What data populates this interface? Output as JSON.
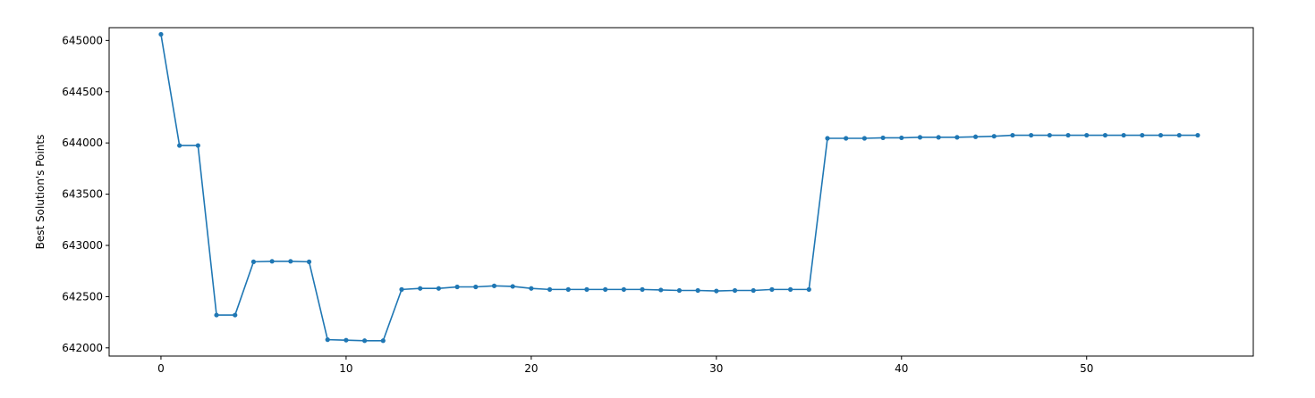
{
  "chart_data": {
    "type": "line",
    "title": "",
    "xlabel": "",
    "ylabel": "Best Solution's Points",
    "xlim": [
      -2.8,
      59
    ],
    "ylim": [
      641920,
      645125
    ],
    "x_ticks": [
      0,
      10,
      20,
      30,
      40,
      50
    ],
    "y_ticks": [
      642000,
      642500,
      643000,
      643500,
      644000,
      644500,
      645000
    ],
    "grid": false,
    "legend": "none",
    "series": [
      {
        "color": "#1f77b4",
        "marker": "circle",
        "x": [
          0,
          1,
          2,
          3,
          4,
          5,
          6,
          7,
          8,
          9,
          10,
          11,
          12,
          13,
          14,
          15,
          16,
          17,
          18,
          19,
          20,
          21,
          22,
          23,
          24,
          25,
          26,
          27,
          28,
          29,
          30,
          31,
          32,
          33,
          34,
          35,
          36,
          37,
          38,
          39,
          40,
          41,
          42,
          43,
          44,
          45,
          46,
          47,
          48,
          49,
          50,
          51,
          52,
          53,
          54,
          55,
          56
        ],
        "y": [
          645060,
          643975,
          643975,
          642320,
          642320,
          642840,
          642845,
          642845,
          642840,
          642080,
          642075,
          642070,
          642070,
          642570,
          642580,
          642580,
          642595,
          642595,
          642605,
          642600,
          642580,
          642570,
          642570,
          642570,
          642570,
          642570,
          642570,
          642565,
          642560,
          642560,
          642555,
          642560,
          642560,
          642570,
          642570,
          642570,
          644045,
          644045,
          644045,
          644050,
          644050,
          644055,
          644055,
          644055,
          644060,
          644065,
          644075,
          644075,
          644075,
          644075,
          644075,
          644075,
          644075,
          644075,
          644075,
          644075,
          644075
        ]
      }
    ]
  }
}
